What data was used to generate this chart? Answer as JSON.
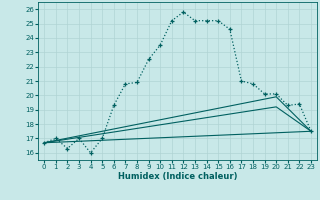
{
  "xlabel": "Humidex (Indice chaleur)",
  "bg_color": "#c8e8e8",
  "grid_color": "#b0d4d4",
  "line_color": "#006060",
  "xlim": [
    -0.5,
    23.5
  ],
  "ylim": [
    15.5,
    26.5
  ],
  "xticks": [
    0,
    1,
    2,
    3,
    4,
    5,
    6,
    7,
    8,
    9,
    10,
    11,
    12,
    13,
    14,
    15,
    16,
    17,
    18,
    19,
    20,
    21,
    22,
    23
  ],
  "yticks": [
    16,
    17,
    18,
    19,
    20,
    21,
    22,
    23,
    24,
    25,
    26
  ],
  "curve1_x": [
    0,
    1,
    2,
    3,
    4,
    5,
    6,
    7,
    8,
    9,
    10,
    11,
    12,
    13,
    14,
    15,
    16,
    17,
    18,
    19,
    20,
    21,
    22,
    23
  ],
  "curve1_y": [
    16.7,
    17.0,
    16.3,
    17.0,
    16.0,
    17.0,
    19.3,
    20.8,
    20.9,
    22.5,
    23.5,
    25.2,
    25.8,
    25.2,
    25.2,
    25.2,
    24.6,
    21.0,
    20.8,
    20.1,
    20.1,
    19.3,
    19.4,
    17.5
  ],
  "line1_x": [
    0,
    23
  ],
  "line1_y": [
    16.7,
    17.5
  ],
  "line2_x": [
    0,
    20,
    23
  ],
  "line2_y": [
    16.7,
    19.2,
    17.5
  ],
  "line3_x": [
    0,
    20,
    23
  ],
  "line3_y": [
    16.7,
    19.9,
    17.5
  ]
}
